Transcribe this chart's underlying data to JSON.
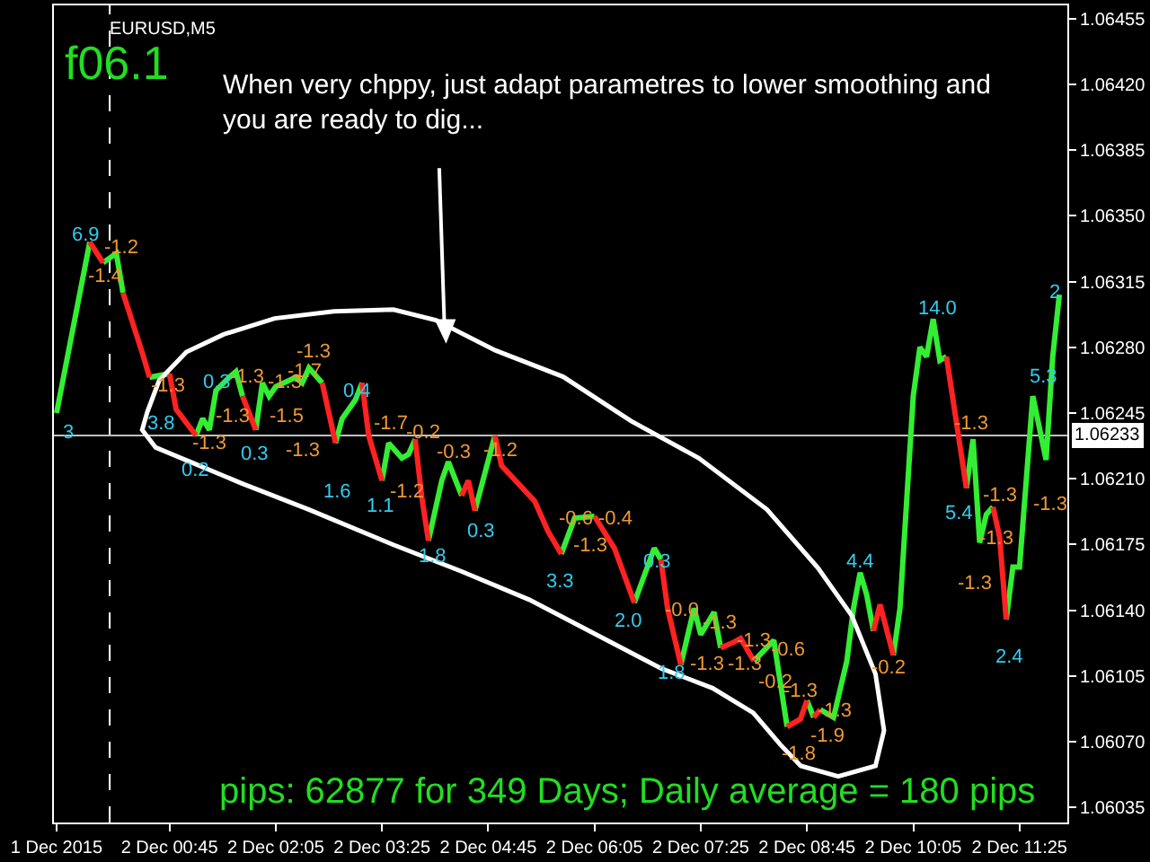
{
  "chart_data": {
    "type": "line",
    "title": "EURUSD,M5",
    "xlim": [
      "2015-12-01T23:18",
      "2015-12-02T12:01"
    ],
    "xticks": [
      {
        "value": "2015-12-01T23:20",
        "label": "1 Dec 2015"
      },
      {
        "value": "2015-12-02T00:45",
        "label": "2 Dec 00:45"
      },
      {
        "value": "2015-12-02T02:05",
        "label": "2 Dec 02:05"
      },
      {
        "value": "2015-12-02T03:25",
        "label": "2 Dec 03:25"
      },
      {
        "value": "2015-12-02T04:45",
        "label": "2 Dec 04:45"
      },
      {
        "value": "2015-12-02T06:05",
        "label": "2 Dec 06:05"
      },
      {
        "value": "2015-12-02T07:25",
        "label": "2 Dec 07:25"
      },
      {
        "value": "2015-12-02T08:45",
        "label": "2 Dec 08:45"
      },
      {
        "value": "2015-12-02T10:05",
        "label": "2 Dec 10:05"
      },
      {
        "value": "2015-12-02T11:25",
        "label": "2 Dec 11:25"
      }
    ],
    "ylim": [
      1.06027,
      1.06462
    ],
    "yticks": [
      {
        "value": 1.06035,
        "label": "1.06035"
      },
      {
        "value": 1.0607,
        "label": "1.06070"
      },
      {
        "value": 1.06105,
        "label": "1.06105"
      },
      {
        "value": 1.0614,
        "label": "1.06140"
      },
      {
        "value": 1.06175,
        "label": "1.06175"
      },
      {
        "value": 1.0621,
        "label": "1.06210"
      },
      {
        "value": 1.06245,
        "label": "1.06245"
      },
      {
        "value": 1.0628,
        "label": "1.06280"
      },
      {
        "value": 1.06315,
        "label": "1.06315"
      },
      {
        "value": 1.0635,
        "label": "1.06350"
      },
      {
        "value": 1.06385,
        "label": "1.06385"
      },
      {
        "value": 1.0642,
        "label": "1.06420"
      },
      {
        "value": 1.06455,
        "label": "1.06455"
      }
    ],
    "series": [
      {
        "color": "#33ee33",
        "x": [
          "2015-12-01T23:20",
          "2015-12-01T23:45"
        ],
        "values": [
          1.06245,
          1.06336
        ]
      },
      {
        "color": "#33ee33",
        "x": [
          "2015-12-01T23:55",
          "2015-12-02T00:05",
          "2015-12-02T00:10"
        ],
        "values": [
          1.06325,
          1.0633,
          1.06309
        ]
      },
      {
        "color": "#33ee33",
        "x": [
          "2015-12-02T00:30",
          "2015-12-02T00:45"
        ],
        "values": [
          1.06264,
          1.06266
        ]
      },
      {
        "color": "#33ee33",
        "x": [
          "2015-12-02T01:05",
          "2015-12-02T01:10",
          "2015-12-02T01:15",
          "2015-12-02T01:20",
          "2015-12-02T01:30",
          "2015-12-02T01:35",
          "2015-12-02T01:40"
        ],
        "values": [
          1.06233,
          1.06242,
          1.06236,
          1.06257,
          1.06264,
          1.06267,
          1.06254
        ]
      },
      {
        "color": "#33ee33",
        "x": [
          "2015-12-02T01:50",
          "2015-12-02T01:55",
          "2015-12-02T02:00",
          "2015-12-02T02:05",
          "2015-12-02T02:20",
          "2015-12-02T02:25",
          "2015-12-02T02:30",
          "2015-12-02T02:40"
        ],
        "values": [
          1.06236,
          1.06261,
          1.06254,
          1.06259,
          1.06264,
          1.06261,
          1.06269,
          1.06261
        ]
      },
      {
        "color": "#33ee33",
        "x": [
          "2015-12-02T02:50",
          "2015-12-02T02:55",
          "2015-12-02T03:05",
          "2015-12-02T03:10"
        ],
        "values": [
          1.06229,
          1.06242,
          1.06252,
          1.06261
        ]
      },
      {
        "color": "#33ee33",
        "x": [
          "2015-12-02T03:25",
          "2015-12-02T03:30",
          "2015-12-02T03:40",
          "2015-12-02T03:45",
          "2015-12-02T03:50"
        ],
        "values": [
          1.06209,
          1.06229,
          1.06221,
          1.06223,
          1.06231
        ]
      },
      {
        "color": "#33ee33",
        "x": [
          "2015-12-02T04:00",
          "2015-12-02T04:10",
          "2015-12-02T04:15",
          "2015-12-02T04:25"
        ],
        "values": [
          1.06177,
          1.06209,
          1.06219,
          1.06201
        ]
      },
      {
        "color": "#33ee33",
        "x": [
          "2015-12-02T04:35",
          "2015-12-02T04:50"
        ],
        "values": [
          1.06193,
          1.06233
        ]
      },
      {
        "color": "#33ee33",
        "x": [
          "2015-12-02T05:40",
          "2015-12-02T05:50",
          "2015-12-02T06:05"
        ],
        "values": [
          1.0617,
          1.06189,
          1.0619
        ]
      },
      {
        "color": "#33ee33",
        "x": [
          "2015-12-02T06:35",
          "2015-12-02T06:50",
          "2015-12-02T06:55"
        ],
        "values": [
          1.06144,
          1.06173,
          1.06167
        ]
      },
      {
        "color": "#33ee33",
        "x": [
          "2015-12-02T07:10",
          "2015-12-02T07:20",
          "2015-12-02T07:25",
          "2015-12-02T07:35",
          "2015-12-02T07:40"
        ],
        "values": [
          1.06111,
          1.06141,
          1.06127,
          1.06139,
          1.0612
        ]
      },
      {
        "color": "#33ee33",
        "x": [
          "2015-12-02T08:05",
          "2015-12-02T08:20",
          "2015-12-02T08:30"
        ],
        "values": [
          1.06113,
          1.06124,
          1.06078
        ]
      },
      {
        "color": "#33ee33",
        "x": [
          "2015-12-02T08:45",
          "2015-12-02T08:50"
        ],
        "values": [
          1.06092,
          1.06083
        ]
      },
      {
        "color": "#33ee33",
        "x": [
          "2015-12-02T08:55",
          "2015-12-02T09:05",
          "2015-12-02T09:15",
          "2015-12-02T09:20",
          "2015-12-02T09:25",
          "2015-12-02T09:30",
          "2015-12-02T09:35"
        ],
        "values": [
          1.06087,
          1.06083,
          1.06113,
          1.06141,
          1.0616,
          1.06148,
          1.06129
        ]
      },
      {
        "color": "#33ee33",
        "x": [
          "2015-12-02T09:50",
          "2015-12-02T09:55",
          "2015-12-02T10:00",
          "2015-12-02T10:05",
          "2015-12-02T10:10",
          "2015-12-02T10:15",
          "2015-12-02T10:20",
          "2015-12-02T10:25",
          "2015-12-02T10:30"
        ],
        "values": [
          1.06116,
          1.06141,
          1.06198,
          1.06254,
          1.0628,
          1.06275,
          1.06295,
          1.06273,
          1.06275
        ]
      },
      {
        "color": "#33ee33",
        "x": [
          "2015-12-02T10:45",
          "2015-12-02T10:50",
          "2015-12-02T10:55",
          "2015-12-02T11:00",
          "2015-12-02T11:05"
        ],
        "values": [
          1.06205,
          1.06231,
          1.06176,
          1.06191,
          1.06195
        ]
      },
      {
        "color": "#33ee33",
        "x": [
          "2015-12-02T11:15",
          "2015-12-02T11:20",
          "2015-12-02T11:25",
          "2015-12-02T11:35",
          "2015-12-02T11:45",
          "2015-12-02T11:50",
          "2015-12-02T11:55"
        ],
        "values": [
          1.06135,
          1.06163,
          1.06163,
          1.06254,
          1.0622,
          1.06275,
          1.06308
        ]
      },
      {
        "color": "#ff2222",
        "x": [
          "2015-12-01T23:45",
          "2015-12-01T23:55"
        ],
        "values": [
          1.06336,
          1.06325
        ]
      },
      {
        "color": "#ff2222",
        "x": [
          "2015-12-02T00:10",
          "2015-12-02T00:25",
          "2015-12-02T00:30"
        ],
        "values": [
          1.06309,
          1.06276,
          1.06264
        ]
      },
      {
        "color": "#ff2222",
        "x": [
          "2015-12-02T00:45",
          "2015-12-02T00:50",
          "2015-12-02T01:05"
        ],
        "values": [
          1.06266,
          1.06247,
          1.06233
        ]
      },
      {
        "color": "#ff2222",
        "x": [
          "2015-12-02T01:40",
          "2015-12-02T01:50"
        ],
        "values": [
          1.06254,
          1.06236
        ]
      },
      {
        "color": "#ff2222",
        "x": [
          "2015-12-02T02:40",
          "2015-12-02T02:50"
        ],
        "values": [
          1.06261,
          1.06229
        ]
      },
      {
        "color": "#ff2222",
        "x": [
          "2015-12-02T03:10",
          "2015-12-02T03:15",
          "2015-12-02T03:25"
        ],
        "values": [
          1.06261,
          1.06233,
          1.06209
        ]
      },
      {
        "color": "#ff2222",
        "x": [
          "2015-12-02T03:50",
          "2015-12-02T03:55",
          "2015-12-02T04:00"
        ],
        "values": [
          1.06231,
          1.062,
          1.06177
        ]
      },
      {
        "color": "#ff2222",
        "x": [
          "2015-12-02T04:25",
          "2015-12-02T04:30",
          "2015-12-02T04:35"
        ],
        "values": [
          1.06201,
          1.06209,
          1.06193
        ]
      },
      {
        "color": "#ff2222",
        "x": [
          "2015-12-02T04:50",
          "2015-12-02T04:55",
          "2015-12-02T05:20",
          "2015-12-02T05:30",
          "2015-12-02T05:40"
        ],
        "values": [
          1.06233,
          1.06217,
          1.06198,
          1.06182,
          1.0617
        ]
      },
      {
        "color": "#ff2222",
        "x": [
          "2015-12-02T06:05",
          "2015-12-02T06:20",
          "2015-12-02T06:35"
        ],
        "values": [
          1.0619,
          1.06173,
          1.06144
        ]
      },
      {
        "color": "#ff2222",
        "x": [
          "2015-12-02T06:55",
          "2015-12-02T07:00",
          "2015-12-02T07:10"
        ],
        "values": [
          1.06167,
          1.06141,
          1.06111
        ]
      },
      {
        "color": "#ff2222",
        "x": [
          "2015-12-02T07:40",
          "2015-12-02T07:50",
          "2015-12-02T07:55",
          "2015-12-02T08:05"
        ],
        "values": [
          1.0612,
          1.06123,
          1.06125,
          1.06113
        ]
      },
      {
        "color": "#ff2222",
        "x": [
          "2015-12-02T08:30",
          "2015-12-02T08:40",
          "2015-12-02T08:45"
        ],
        "values": [
          1.06078,
          1.06082,
          1.06092
        ]
      },
      {
        "color": "#ff2222",
        "x": [
          "2015-12-02T08:50",
          "2015-12-02T08:55"
        ],
        "values": [
          1.06083,
          1.06087
        ]
      },
      {
        "color": "#ff2222",
        "x": [
          "2015-12-02T09:35",
          "2015-12-02T09:40",
          "2015-12-02T09:50"
        ],
        "values": [
          1.06129,
          1.06143,
          1.06116
        ]
      },
      {
        "color": "#ff2222",
        "x": [
          "2015-12-02T10:30",
          "2015-12-02T10:45"
        ],
        "values": [
          1.06275,
          1.06205
        ]
      },
      {
        "color": "#ff2222",
        "x": [
          "2015-12-02T11:05",
          "2015-12-02T11:10",
          "2015-12-02T11:15"
        ],
        "values": [
          1.06195,
          1.06179,
          1.06135
        ]
      }
    ],
    "ref_lines": [
      {
        "axis": "y",
        "value": 1.06233,
        "label": "1.06233",
        "color": "#c0c0c0"
      },
      {
        "axis": "x",
        "value": "2015-12-02T00:00",
        "color": "#ffffff",
        "line_style": "dashed"
      }
    ],
    "annotations": [
      "f06.1",
      "When very chppy, just adapt parametres to lower smoothing and you are ready to dig...",
      "pips: 62877 for 349 Days; Daily average = 180 pips",
      "3",
      "6.9",
      "-1.2",
      "-1.4",
      "-1.3",
      "3.8",
      "0.2",
      "-1.3",
      "0.3",
      "-1.3",
      "-1.3",
      "0.3",
      "-1.3",
      "-1.5",
      "-1.7",
      "-1.3",
      "-1.3",
      "0.4",
      "1.6",
      "-1.7",
      "-0.2",
      "1.1",
      "-1.2",
      "-0.3",
      "-1.2",
      "1.8",
      "0.3",
      "3.3",
      "-0.6",
      "-0.4",
      "-1.3",
      "0.3",
      "2.0",
      "-0.0",
      "-1.3",
      "-1.3",
      "-0.6",
      "1.8",
      "-1.3",
      "-1.3",
      "-0.2",
      "-1.3",
      "-1.3",
      "-1.9",
      "-1.8",
      "4.4",
      "-0.2",
      "14.0",
      "-1.3",
      "5.4",
      "-1.3",
      "-1.3",
      "-1.3",
      "2.4",
      "5.3",
      "-1.3",
      "2"
    ]
  }
}
